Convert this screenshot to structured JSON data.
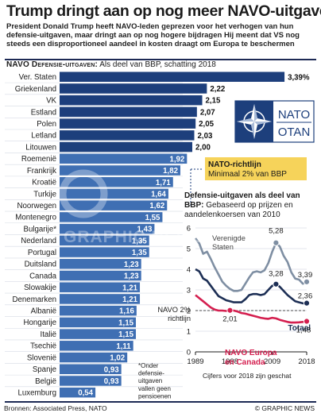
{
  "header": {
    "title": "Trump dringt aan op nog meer NAVO-uitgaven",
    "subtitle": "President Donald Trump heeft NAVO-leden geprezen voor het verhogen van hun defensie-uitgaven, maar dringt aan op nog hogere bijdragen  Hij meent dat VS nog steeds een disproportioneel aandeel in kosten draagt om Europa te beschermen"
  },
  "bar_section": {
    "title_bold": "NAVO Defensie-uitgaven:",
    "title_rest": " Als deel van BBP, schatting 2018"
  },
  "guideline_box": {
    "title": "NATO-richtlijn",
    "text": "Minimaal 2% van BBP"
  },
  "logo": {
    "top": "NATO",
    "bottom": "OTAN"
  },
  "watermark": "GRAPHIC NEWS",
  "footnote": [
    "*Onder",
    "defensie-",
    "uitgaven",
    "vallen geen",
    "pensioenen"
  ],
  "line_section": {
    "title_bold": "Defensie-uitgaven als deel van BBP:",
    "title_rest": " Gebaseerd op prijzen en aandelenkoersen van 2010"
  },
  "chart_data": [
    {
      "type": "bar",
      "title": "NAVO Defensie-uitgaven: Als deel van BBP, schatting 2018",
      "categories": [
        "Ver. Staten",
        "Griekenland",
        "VK",
        "Estland",
        "Polen",
        "Letland",
        "Litouwen",
        "Roemenië",
        "Frankrijk",
        "Kroatië",
        "Turkije",
        "Noorwegen",
        "Montenegro",
        "Bulgarije*",
        "Nederland",
        "Portugal",
        "Duitsland",
        "Canada",
        "Slowakije",
        "Denemarken",
        "Albanië",
        "Hongarije",
        "Italië",
        "Tsechië",
        "Slovenië",
        "Spanje",
        "België",
        "Luxemburg"
      ],
      "value_labels": [
        "3,39%",
        "2,22",
        "2,15",
        "2,07",
        "2,05",
        "2,03",
        "2,00",
        "1,92",
        "1,82",
        "1,71",
        "1,64",
        "1,62",
        "1,55",
        "1,43",
        "1,35",
        "1,35",
        "1,23",
        "1,23",
        "1,21",
        "1,21",
        "1,16",
        "1,15",
        "1,15",
        "1,11",
        "1,02",
        "0,93",
        "0,93",
        "0,54"
      ],
      "values": [
        3.39,
        2.22,
        2.15,
        2.07,
        2.05,
        2.03,
        2.0,
        1.92,
        1.82,
        1.71,
        1.64,
        1.62,
        1.55,
        1.43,
        1.35,
        1.35,
        1.23,
        1.23,
        1.21,
        1.21,
        1.16,
        1.15,
        1.15,
        1.11,
        1.02,
        0.93,
        0.93,
        0.54
      ],
      "colors": {
        "above_guideline": "#1d3f7c",
        "below_guideline": "#3f6fb3"
      }
    },
    {
      "type": "line",
      "title": "Defensie-uitgaven als deel van BBP: Gebaseerd op prijzen en aandelenkoersen van 2010",
      "xlim": [
        1989,
        2018
      ],
      "ylim": [
        0,
        6
      ],
      "y_ticks": [
        "0",
        "1",
        "2",
        "3",
        "4",
        "5",
        "6"
      ],
      "x_ticks": [
        "1989",
        "1998",
        "2009",
        "2018"
      ],
      "series": [
        {
          "name": "Verenigde Staten",
          "color": "#7f8fa3",
          "points": [
            [
              1989,
              5.5
            ],
            [
              1990,
              5.25
            ],
            [
              1991,
              4.75
            ],
            [
              1992,
              4.85
            ],
            [
              1993,
              4.5
            ],
            [
              1994,
              4.1
            ],
            [
              1995,
              3.75
            ],
            [
              1996,
              3.4
            ],
            [
              1997,
              3.2
            ],
            [
              1998,
              3.05
            ],
            [
              1999,
              2.95
            ],
            [
              2000,
              2.95
            ],
            [
              2001,
              3.0
            ],
            [
              2002,
              3.3
            ],
            [
              2003,
              3.6
            ],
            [
              2004,
              3.85
            ],
            [
              2005,
              3.9
            ],
            [
              2006,
              3.85
            ],
            [
              2007,
              3.95
            ],
            [
              2008,
              4.3
            ],
            [
              2009,
              4.85
            ],
            [
              2010,
              5.28
            ],
            [
              2011,
              5.1
            ],
            [
              2012,
              4.65
            ],
            [
              2013,
              4.35
            ],
            [
              2014,
              3.85
            ],
            [
              2015,
              3.55
            ],
            [
              2016,
              3.5
            ],
            [
              2017,
              3.3
            ],
            [
              2018,
              3.39
            ]
          ]
        },
        {
          "name": "Totaal",
          "color": "#1d2f55",
          "points": [
            [
              1989,
              4.0
            ],
            [
              1990,
              3.9
            ],
            [
              1991,
              3.55
            ],
            [
              1992,
              3.45
            ],
            [
              1993,
              3.2
            ],
            [
              1994,
              2.95
            ],
            [
              1995,
              2.7
            ],
            [
              1996,
              2.6
            ],
            [
              1997,
              2.5
            ],
            [
              1998,
              2.45
            ],
            [
              1999,
              2.4
            ],
            [
              2000,
              2.4
            ],
            [
              2001,
              2.4
            ],
            [
              2002,
              2.55
            ],
            [
              2003,
              2.75
            ],
            [
              2004,
              2.8
            ],
            [
              2005,
              2.8
            ],
            [
              2006,
              2.75
            ],
            [
              2007,
              2.8
            ],
            [
              2008,
              3.0
            ],
            [
              2009,
              3.2
            ],
            [
              2010,
              3.28
            ],
            [
              2011,
              3.15
            ],
            [
              2012,
              2.95
            ],
            [
              2013,
              2.75
            ],
            [
              2014,
              2.6
            ],
            [
              2015,
              2.45
            ],
            [
              2016,
              2.4
            ],
            [
              2017,
              2.35
            ],
            [
              2018,
              2.36
            ]
          ]
        },
        {
          "name": "NAVO Europa en Canada",
          "color": "#d41f4f",
          "points": [
            [
              1989,
              2.75
            ],
            [
              1990,
              2.6
            ],
            [
              1991,
              2.45
            ],
            [
              1992,
              2.3
            ],
            [
              1993,
              2.15
            ],
            [
              1994,
              2.05
            ],
            [
              1995,
              2.0
            ],
            [
              1996,
              2.0
            ],
            [
              1997,
              1.98
            ],
            [
              1998,
              2.01
            ],
            [
              1999,
              2.0
            ],
            [
              2000,
              1.95
            ],
            [
              2001,
              1.88
            ],
            [
              2002,
              1.85
            ],
            [
              2003,
              1.8
            ],
            [
              2004,
              1.75
            ],
            [
              2005,
              1.7
            ],
            [
              2006,
              1.65
            ],
            [
              2007,
              1.62
            ],
            [
              2008,
              1.6
            ],
            [
              2009,
              1.65
            ],
            [
              2010,
              1.62
            ],
            [
              2011,
              1.55
            ],
            [
              2012,
              1.5
            ],
            [
              2013,
              1.45
            ],
            [
              2014,
              1.42
            ],
            [
              2015,
              1.42
            ],
            [
              2016,
              1.43
            ],
            [
              2017,
              1.45
            ],
            [
              2018,
              1.48
            ]
          ]
        }
      ],
      "guideline": {
        "label_line1": "NAVO 2%",
        "label_line2": "richtlijn",
        "value": 2
      },
      "annotations": [
        {
          "text": "5,28",
          "x": 2010,
          "y": 5.28
        },
        {
          "text": "3,28",
          "x": 2010,
          "y": 3.28
        },
        {
          "text": "2,01",
          "x": 1998,
          "y": 2.01
        },
        {
          "text": "3,39",
          "x": 2018,
          "y": 3.39
        },
        {
          "text": "2,36",
          "x": 2018,
          "y": 2.36
        },
        {
          "text": "1,48",
          "x": 2018,
          "y": 1.48
        }
      ],
      "note": "Cijfers voor 2018 zijn geschat"
    }
  ],
  "footer": {
    "source": "Bronnen: Associated Press, NATO",
    "credit": "© GRAPHIC NEWS"
  }
}
